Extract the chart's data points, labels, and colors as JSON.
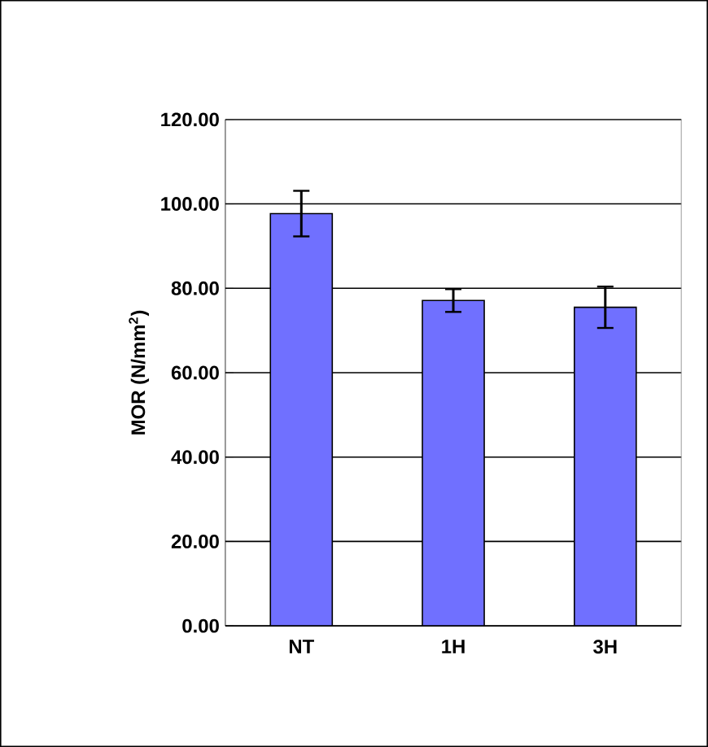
{
  "chart_data": {
    "type": "bar",
    "ylabel": "MOR (N/mm$^{2}$)",
    "categories": [
      "NT",
      "1H",
      "3H"
    ],
    "values": [
      97.7,
      77.1,
      75.5
    ],
    "errors": [
      5.4,
      2.7,
      4.9
    ],
    "color": "#7070ff",
    "ylim": [
      0,
      120
    ],
    "yticks": [
      {
        "value": 0,
        "label": "0.00"
      },
      {
        "value": 20,
        "label": "20.00"
      },
      {
        "value": 40,
        "label": "40.00"
      },
      {
        "value": 60,
        "label": "60.00"
      },
      {
        "value": 80,
        "label": "80.00"
      },
      {
        "value": 100,
        "label": "100.00"
      },
      {
        "value": 120,
        "label": "120.00"
      }
    ],
    "grid": "y"
  }
}
